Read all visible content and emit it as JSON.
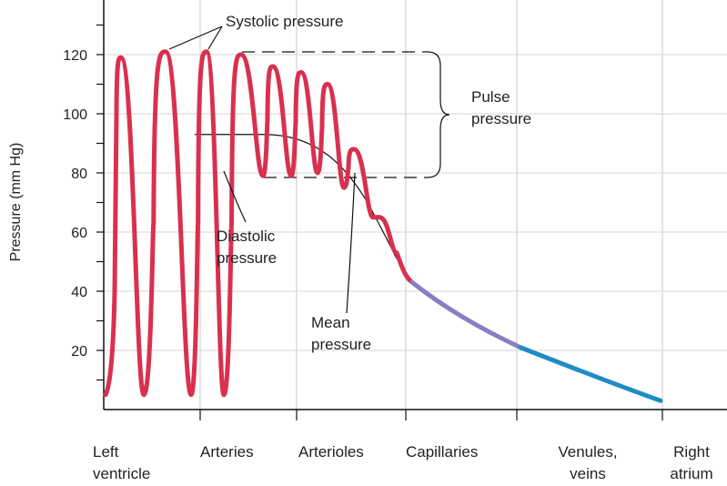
{
  "chart_data": {
    "type": "line",
    "ylabel": "Pressure (mm Hg)",
    "ylim": [
      0,
      130
    ],
    "yticks": [
      20,
      40,
      60,
      80,
      100,
      120
    ],
    "grid": true,
    "regions": [
      {
        "label": [
          "Left",
          "ventricle"
        ]
      },
      {
        "label": [
          "Arteries"
        ]
      },
      {
        "label": [
          "Arterioles"
        ]
      },
      {
        "label": [
          "Capillaries"
        ]
      },
      {
        "label": [
          "Venules,",
          "veins"
        ]
      },
      {
        "label": [
          "Right",
          "atrium"
        ]
      }
    ],
    "series": [
      {
        "color": "#d9304f",
        "segment": "ventricle-arteries-arterioles",
        "systolic_peaks": [
          119,
          121,
          121,
          120,
          116,
          114,
          110,
          88,
          65
        ],
        "diastolic_troughs": [
          5,
          5,
          5,
          79,
          79,
          80,
          75,
          65,
          53
        ]
      },
      {
        "color": "#8a7ec2",
        "segment": "capillaries",
        "start": 43,
        "end": 21
      },
      {
        "color": "#1f8cc4",
        "segment": "venules-veins",
        "start": 21,
        "end": 3
      }
    ],
    "mean_pressure": {
      "value": 93,
      "end": 51
    },
    "annotations": {
      "systolic": "Systolic pressure",
      "pulse": [
        "Pulse",
        "pressure"
      ],
      "diastolic": [
        "Diastolic",
        "pressure"
      ],
      "mean": [
        "Mean",
        "pressure"
      ]
    }
  }
}
